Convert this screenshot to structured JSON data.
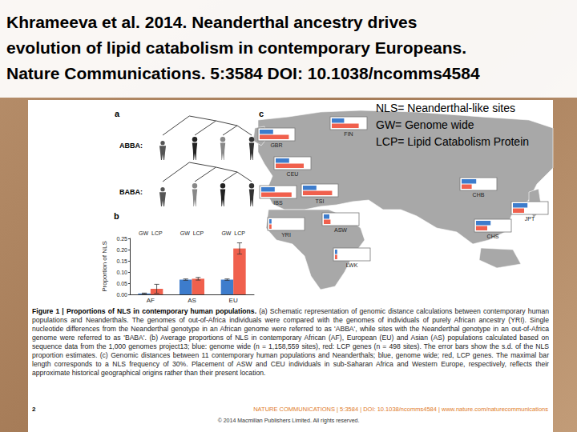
{
  "slide": {
    "title_lines": [
      "Khrameeva et al. 2014. Neanderthal ancestry drives",
      "evolution of lipid catabolism in contemporary Europeans.",
      "Nature Communications. 5:3584 DOI: 10.1038/ncomms4584"
    ],
    "abbreviations": [
      "NLS= Neanderthal-like sites",
      "GW= Genome wide",
      "LCP= Lipid Catabolism Protein"
    ]
  },
  "figure": {
    "panel_a": {
      "label": "a",
      "rows": [
        "ABBA:",
        "BABA:"
      ]
    },
    "panel_b": {
      "label": "b"
    },
    "panel_c": {
      "label": "c",
      "bar_max": 30,
      "populations": [
        {
          "name": "GBR",
          "gw": 12,
          "lcp": 26
        },
        {
          "name": "FIN",
          "gw": 11,
          "lcp": 24
        },
        {
          "name": "CEU",
          "gw": 12,
          "lcp": 25
        },
        {
          "name": "IBS",
          "gw": 12,
          "lcp": 27
        },
        {
          "name": "TSI",
          "gw": 12,
          "lcp": 26
        },
        {
          "name": "CHB",
          "gw": 13,
          "lcp": 9
        },
        {
          "name": "JPT",
          "gw": 13,
          "lcp": 10
        },
        {
          "name": "CHS",
          "gw": 13,
          "lcp": 10
        },
        {
          "name": "YRI",
          "gw": 2,
          "lcp": 2
        },
        {
          "name": "ASW",
          "gw": 5,
          "lcp": 6
        },
        {
          "name": "LWK",
          "gw": 2,
          "lcp": 2
        }
      ]
    },
    "caption": {
      "heading": "Figure 1 | Proportions of NLS in contemporary human populations.",
      "text": "(a) Schematic representation of genomic distance calculations between contemporary human populations and Neanderthals. The genomes of out-of-Africa individuals were compared with the genomes of individuals of purely African ancestry (YRI). Single nucleotide differences from the Neanderthal genotype in an African genome were referred to as 'ABBA', while sites with the Neanderthal genotype in an out-of-Africa genome were referred to as 'BABA'. (b) Average proportions of NLS in contemporary African (AF), European (EU) and Asian (AS) populations calculated based on sequence data from the 1,000 genomes project13; blue: genome wide (n = 1,158,559 sites), red: LCP genes (n = 498 sites). The error bars show the s.d. of the NLS proportion estimates. (c) Genomic distances between 11 contemporary human populations and Neanderthals; blue, genome wide; red, LCP genes. The maximal bar length corresponds to a NLS frequency of 30%. Placement of ASW and CEU individuals in sub-Saharan Africa and Western Europe, respectively, reflects their approximate historical geographical origins rather than their present location."
    },
    "footer": {
      "page": "2",
      "journal": "NATURE COMMUNICATIONS | 5:3584 | DOI: 10.1038/ncomms4584 | www.nature.com/naturecommunications",
      "copyright": "© 2014 Macmillan Publishers Limited. All rights reserved."
    }
  },
  "chart_data": {
    "type": "bar",
    "categories": [
      "AF",
      "AS",
      "EU"
    ],
    "ylabel": "Proportion of NLS",
    "ylim": [
      0,
      0.25
    ],
    "yticks": [
      {
        "value": 0,
        "label": "0.00"
      },
      0.05,
      {
        "value": 0.1,
        "label": "0.10"
      },
      0.15,
      {
        "value": 0.2,
        "label": "0.20"
      },
      0.25
    ],
    "grid": false,
    "series": [
      {
        "name": "GW",
        "color": "#3d7ccc",
        "values": [
          0.004,
          0.066,
          0.066
        ],
        "errors": [
          0.002,
          0.003,
          0.003
        ]
      },
      {
        "name": "LCP",
        "color": "#f0604d",
        "values": [
          0.025,
          0.07,
          0.205
        ],
        "errors": [
          0.02,
          0.006,
          0.025
        ]
      }
    ]
  }
}
